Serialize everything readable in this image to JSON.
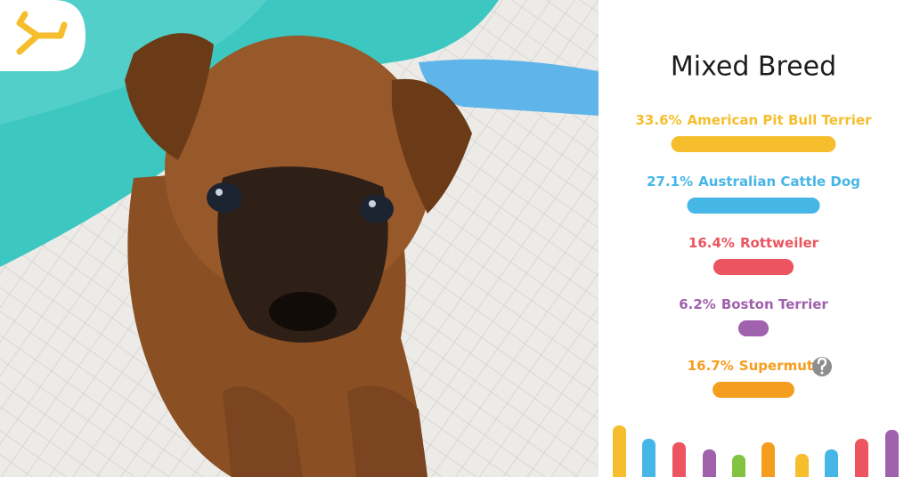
{
  "chart_data": {
    "type": "bar",
    "title": "Mixed Breed",
    "categories": [
      "American Pit Bull Terrier",
      "Australian Cattle Dog",
      "Rottweiler",
      "Boston Terrier",
      "Supermutt"
    ],
    "values": [
      33.6,
      27.1,
      16.4,
      6.2,
      16.7
    ],
    "value_labels": [
      "33.6%",
      "27.1%",
      "16.4%",
      "6.2%",
      "16.7%"
    ],
    "colors": [
      "#f6be2c",
      "#46b6e6",
      "#ec5560",
      "#a061ad",
      "#f59d1e"
    ]
  }
}
